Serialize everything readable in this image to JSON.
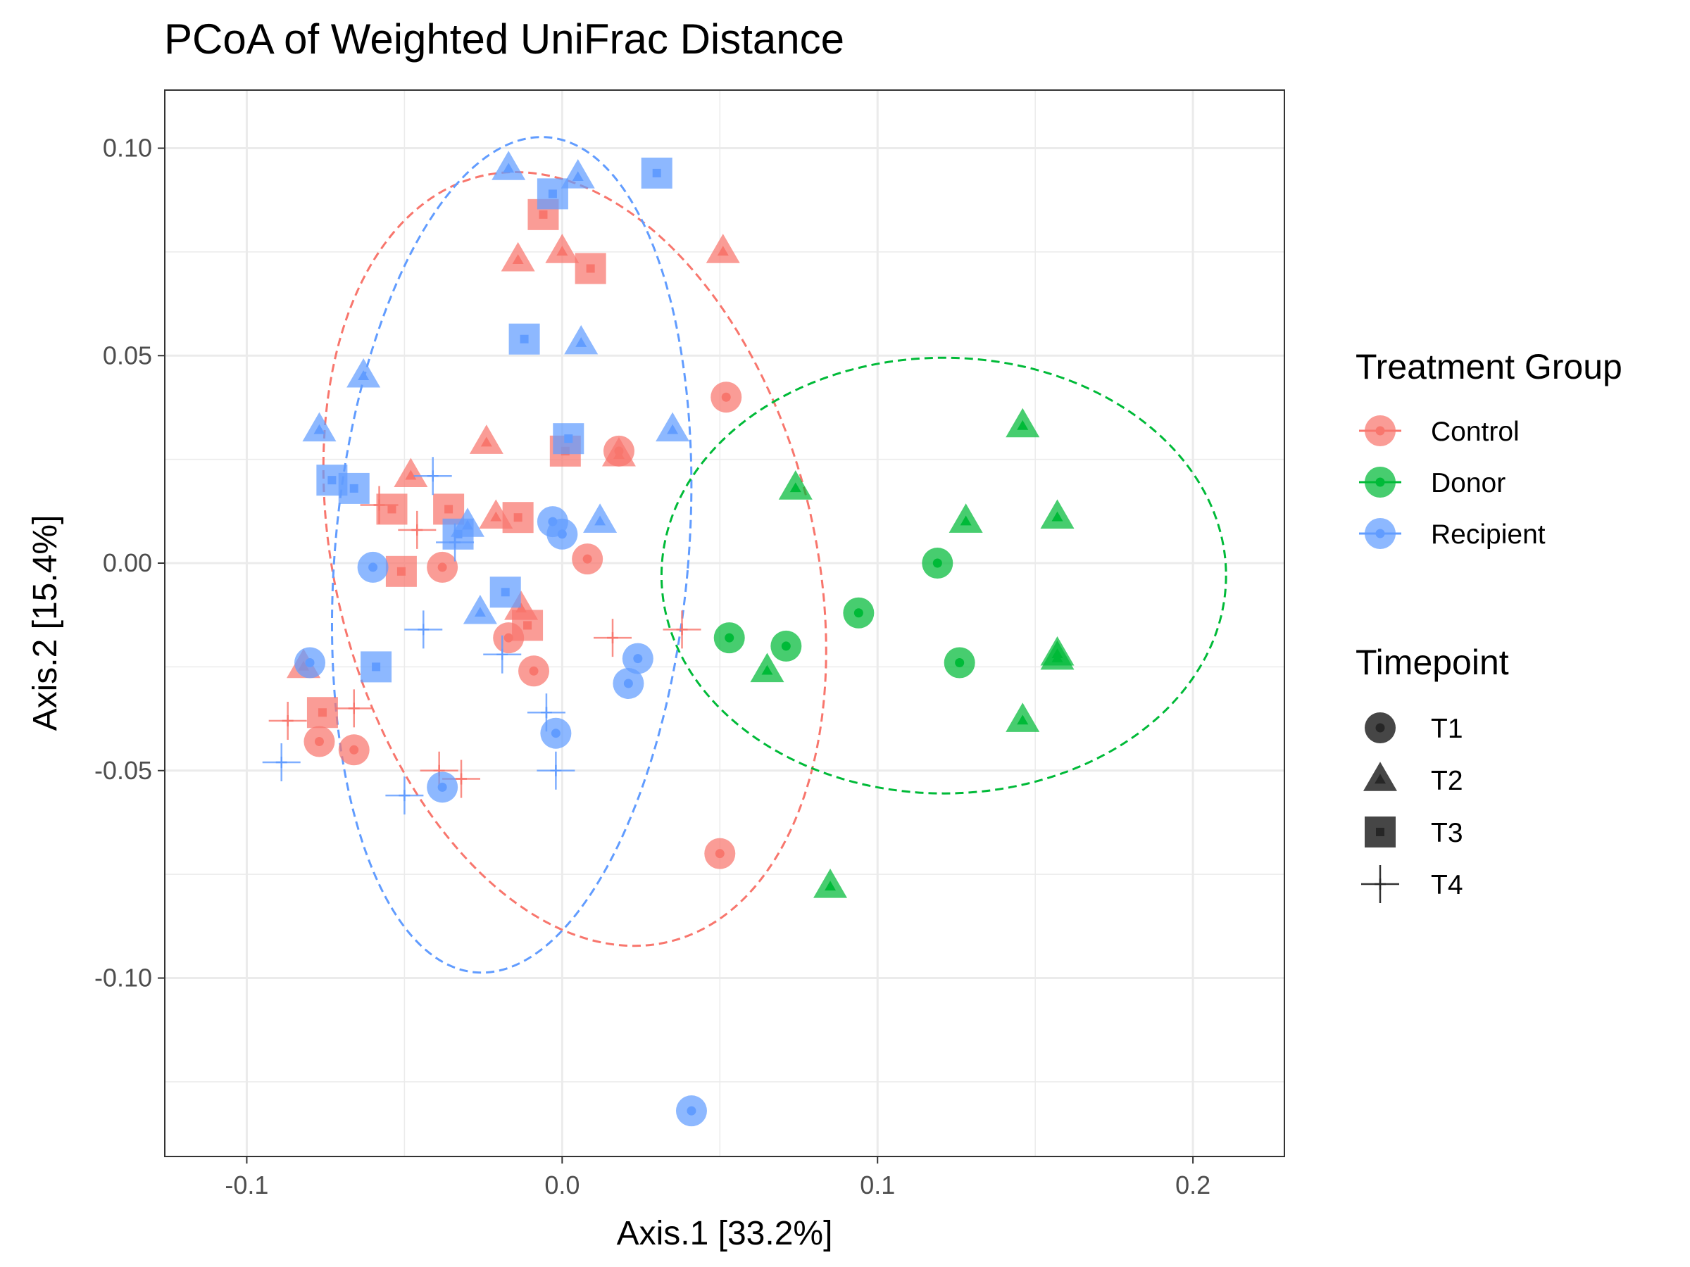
{
  "chart_data": {
    "type": "scatter",
    "title": "PCoA of Weighted UniFrac Distance",
    "xlabel": "Axis.1   [33.2%]",
    "ylabel": "Axis.2   [15.4%]",
    "xlim": [
      -0.126,
      0.229
    ],
    "ylim": [
      -0.143,
      0.114
    ],
    "x_ticks": [
      -0.1,
      0.0,
      0.1,
      0.2
    ],
    "x_tick_labels": [
      "-0.1",
      "0.0",
      "0.1",
      "0.2"
    ],
    "y_ticks": [
      -0.1,
      -0.05,
      0.0,
      0.05,
      0.1
    ],
    "y_tick_labels": [
      "-0.10",
      "-0.05",
      "0.00",
      "0.05",
      "0.10"
    ],
    "grid": true,
    "legend_placement": "right",
    "colors": {
      "Control": "#F8766D",
      "Donor": "#00BA38",
      "Recipient": "#619CFF"
    },
    "legends": [
      {
        "title": "Treatment Group",
        "entries": [
          "Control",
          "Donor",
          "Recipient"
        ]
      },
      {
        "title": "Timepoint",
        "entries": [
          "T1",
          "T2",
          "T3",
          "T4"
        ]
      }
    ],
    "ellipses": [
      {
        "group": "Control",
        "center": [
          0.004,
          0.001
        ],
        "semi_axes": [
          0.076,
          0.095
        ],
        "angle_deg": 14
      },
      {
        "group": "Recipient",
        "center": [
          -0.016,
          0.002
        ],
        "semi_axes": [
          0.056,
          0.101
        ],
        "angle_deg": -5
      },
      {
        "group": "Donor",
        "center": [
          0.121,
          -0.003
        ],
        "semi_axes": [
          0.0895,
          0.0525
        ],
        "angle_deg": 0
      }
    ],
    "points": [
      {
        "x": -0.077,
        "y": -0.043,
        "group": "Control",
        "timepoint": "T1"
      },
      {
        "x": -0.066,
        "y": -0.045,
        "group": "Control",
        "timepoint": "T1"
      },
      {
        "x": -0.038,
        "y": -0.001,
        "group": "Control",
        "timepoint": "T1"
      },
      {
        "x": -0.017,
        "y": -0.018,
        "group": "Control",
        "timepoint": "T1"
      },
      {
        "x": -0.009,
        "y": -0.026,
        "group": "Control",
        "timepoint": "T1"
      },
      {
        "x": 0.008,
        "y": 0.001,
        "group": "Control",
        "timepoint": "T1"
      },
      {
        "x": 0.018,
        "y": 0.027,
        "group": "Control",
        "timepoint": "T1"
      },
      {
        "x": 0.052,
        "y": 0.04,
        "group": "Control",
        "timepoint": "T1"
      },
      {
        "x": 0.05,
        "y": -0.07,
        "group": "Control",
        "timepoint": "T1"
      },
      {
        "x": -0.082,
        "y": -0.025,
        "group": "Control",
        "timepoint": "T2"
      },
      {
        "x": -0.048,
        "y": 0.021,
        "group": "Control",
        "timepoint": "T2"
      },
      {
        "x": -0.024,
        "y": 0.029,
        "group": "Control",
        "timepoint": "T2"
      },
      {
        "x": -0.021,
        "y": 0.011,
        "group": "Control",
        "timepoint": "T2"
      },
      {
        "x": -0.014,
        "y": 0.073,
        "group": "Control",
        "timepoint": "T2"
      },
      {
        "x": -0.013,
        "y": -0.011,
        "group": "Control",
        "timepoint": "T2"
      },
      {
        "x": 0.0,
        "y": 0.075,
        "group": "Control",
        "timepoint": "T2"
      },
      {
        "x": 0.018,
        "y": 0.026,
        "group": "Control",
        "timepoint": "T2"
      },
      {
        "x": 0.051,
        "y": 0.075,
        "group": "Control",
        "timepoint": "T2"
      },
      {
        "x": -0.076,
        "y": -0.036,
        "group": "Control",
        "timepoint": "T3"
      },
      {
        "x": -0.054,
        "y": 0.013,
        "group": "Control",
        "timepoint": "T3"
      },
      {
        "x": -0.051,
        "y": -0.002,
        "group": "Control",
        "timepoint": "T3"
      },
      {
        "x": -0.036,
        "y": 0.013,
        "group": "Control",
        "timepoint": "T3"
      },
      {
        "x": -0.014,
        "y": 0.011,
        "group": "Control",
        "timepoint": "T3"
      },
      {
        "x": -0.011,
        "y": -0.015,
        "group": "Control",
        "timepoint": "T3"
      },
      {
        "x": -0.006,
        "y": 0.084,
        "group": "Control",
        "timepoint": "T3"
      },
      {
        "x": 0.001,
        "y": 0.027,
        "group": "Control",
        "timepoint": "T3"
      },
      {
        "x": 0.009,
        "y": 0.071,
        "group": "Control",
        "timepoint": "T3"
      },
      {
        "x": -0.087,
        "y": -0.038,
        "group": "Control",
        "timepoint": "T4"
      },
      {
        "x": -0.066,
        "y": -0.035,
        "group": "Control",
        "timepoint": "T4"
      },
      {
        "x": -0.058,
        "y": 0.014,
        "group": "Control",
        "timepoint": "T4"
      },
      {
        "x": -0.046,
        "y": 0.008,
        "group": "Control",
        "timepoint": "T4"
      },
      {
        "x": -0.039,
        "y": -0.05,
        "group": "Control",
        "timepoint": "T4"
      },
      {
        "x": -0.032,
        "y": -0.052,
        "group": "Control",
        "timepoint": "T4"
      },
      {
        "x": 0.016,
        "y": -0.018,
        "group": "Control",
        "timepoint": "T4"
      },
      {
        "x": 0.038,
        "y": -0.016,
        "group": "Control",
        "timepoint": "T4"
      },
      {
        "x": 0.053,
        "y": -0.018,
        "group": "Donor",
        "timepoint": "T1"
      },
      {
        "x": 0.071,
        "y": -0.02,
        "group": "Donor",
        "timepoint": "T1"
      },
      {
        "x": 0.094,
        "y": -0.012,
        "group": "Donor",
        "timepoint": "T1"
      },
      {
        "x": 0.119,
        "y": 0.0,
        "group": "Donor",
        "timepoint": "T1"
      },
      {
        "x": 0.126,
        "y": -0.024,
        "group": "Donor",
        "timepoint": "T1"
      },
      {
        "x": 0.065,
        "y": -0.026,
        "group": "Donor",
        "timepoint": "T2"
      },
      {
        "x": 0.074,
        "y": 0.018,
        "group": "Donor",
        "timepoint": "T2"
      },
      {
        "x": 0.085,
        "y": -0.078,
        "group": "Donor",
        "timepoint": "T2"
      },
      {
        "x": 0.128,
        "y": 0.01,
        "group": "Donor",
        "timepoint": "T2"
      },
      {
        "x": 0.146,
        "y": 0.033,
        "group": "Donor",
        "timepoint": "T2"
      },
      {
        "x": 0.146,
        "y": -0.038,
        "group": "Donor",
        "timepoint": "T2"
      },
      {
        "x": 0.157,
        "y": 0.011,
        "group": "Donor",
        "timepoint": "T2"
      },
      {
        "x": 0.157,
        "y": -0.022,
        "group": "Donor",
        "timepoint": "T2"
      },
      {
        "x": 0.157,
        "y": -0.023,
        "group": "Donor",
        "timepoint": "T2"
      },
      {
        "x": -0.08,
        "y": -0.024,
        "group": "Recipient",
        "timepoint": "T1"
      },
      {
        "x": -0.06,
        "y": -0.001,
        "group": "Recipient",
        "timepoint": "T1"
      },
      {
        "x": -0.038,
        "y": -0.054,
        "group": "Recipient",
        "timepoint": "T1"
      },
      {
        "x": -0.003,
        "y": 0.01,
        "group": "Recipient",
        "timepoint": "T1"
      },
      {
        "x": -0.002,
        "y": -0.041,
        "group": "Recipient",
        "timepoint": "T1"
      },
      {
        "x": 0.0,
        "y": 0.007,
        "group": "Recipient",
        "timepoint": "T1"
      },
      {
        "x": 0.021,
        "y": -0.029,
        "group": "Recipient",
        "timepoint": "T1"
      },
      {
        "x": 0.024,
        "y": -0.023,
        "group": "Recipient",
        "timepoint": "T1"
      },
      {
        "x": 0.041,
        "y": -0.132,
        "group": "Recipient",
        "timepoint": "T1"
      },
      {
        "x": -0.077,
        "y": 0.032,
        "group": "Recipient",
        "timepoint": "T2"
      },
      {
        "x": -0.063,
        "y": 0.045,
        "group": "Recipient",
        "timepoint": "T2"
      },
      {
        "x": -0.03,
        "y": 0.009,
        "group": "Recipient",
        "timepoint": "T2"
      },
      {
        "x": -0.026,
        "y": -0.012,
        "group": "Recipient",
        "timepoint": "T2"
      },
      {
        "x": -0.017,
        "y": 0.095,
        "group": "Recipient",
        "timepoint": "T2"
      },
      {
        "x": 0.005,
        "y": 0.093,
        "group": "Recipient",
        "timepoint": "T2"
      },
      {
        "x": 0.006,
        "y": 0.053,
        "group": "Recipient",
        "timepoint": "T2"
      },
      {
        "x": 0.012,
        "y": 0.01,
        "group": "Recipient",
        "timepoint": "T2"
      },
      {
        "x": 0.035,
        "y": 0.032,
        "group": "Recipient",
        "timepoint": "T2"
      },
      {
        "x": -0.073,
        "y": 0.02,
        "group": "Recipient",
        "timepoint": "T3"
      },
      {
        "x": -0.066,
        "y": 0.018,
        "group": "Recipient",
        "timepoint": "T3"
      },
      {
        "x": -0.059,
        "y": -0.025,
        "group": "Recipient",
        "timepoint": "T3"
      },
      {
        "x": -0.033,
        "y": 0.007,
        "group": "Recipient",
        "timepoint": "T3"
      },
      {
        "x": -0.018,
        "y": -0.007,
        "group": "Recipient",
        "timepoint": "T3"
      },
      {
        "x": -0.012,
        "y": 0.054,
        "group": "Recipient",
        "timepoint": "T3"
      },
      {
        "x": -0.003,
        "y": 0.089,
        "group": "Recipient",
        "timepoint": "T3"
      },
      {
        "x": 0.002,
        "y": 0.03,
        "group": "Recipient",
        "timepoint": "T3"
      },
      {
        "x": 0.03,
        "y": 0.094,
        "group": "Recipient",
        "timepoint": "T3"
      },
      {
        "x": -0.089,
        "y": -0.048,
        "group": "Recipient",
        "timepoint": "T4"
      },
      {
        "x": -0.05,
        "y": -0.056,
        "group": "Recipient",
        "timepoint": "T4"
      },
      {
        "x": -0.044,
        "y": -0.016,
        "group": "Recipient",
        "timepoint": "T4"
      },
      {
        "x": -0.041,
        "y": 0.021,
        "group": "Recipient",
        "timepoint": "T4"
      },
      {
        "x": -0.034,
        "y": 0.005,
        "group": "Recipient",
        "timepoint": "T4"
      },
      {
        "x": -0.019,
        "y": -0.022,
        "group": "Recipient",
        "timepoint": "T4"
      },
      {
        "x": -0.005,
        "y": -0.036,
        "group": "Recipient",
        "timepoint": "T4"
      },
      {
        "x": -0.002,
        "y": -0.05,
        "group": "Recipient",
        "timepoint": "T4"
      }
    ]
  }
}
